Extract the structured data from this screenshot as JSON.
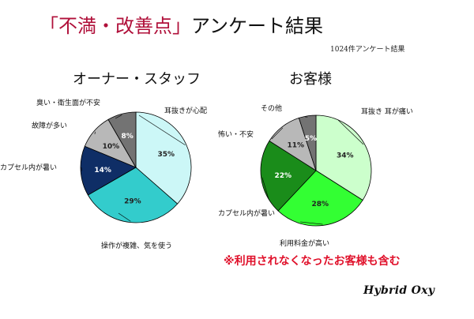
{
  "header": {
    "title_accent": "「不満・改善点」",
    "title_rest": "アンケート結果",
    "subnote": "1024件アンケート結果"
  },
  "note": "※利用されなくなったお客様も含む",
  "brand": "Hybrid Oxy",
  "colors": {
    "accent": "#b0103a",
    "note": "#e0102a"
  },
  "chart_data": [
    {
      "type": "pie",
      "title": "オーナー・スタッフ",
      "slices": [
        {
          "label": "耳抜きが心配",
          "value": 35,
          "value_label": "35%",
          "color": "#ccf7f7"
        },
        {
          "label": "操作が複雑、気を使う",
          "value": 29,
          "value_label": "29%",
          "color": "#33cccc"
        },
        {
          "label": "カプセル内が暑い",
          "value": 14,
          "value_label": "14%",
          "color": "#0f2e66"
        },
        {
          "label": "故障が多い",
          "value": 10,
          "value_label": "10%",
          "color": "#b8b8b8"
        },
        {
          "label": "臭い・衛生面が不安",
          "value": 8,
          "value_label": "8%",
          "color": "#737373"
        }
      ]
    },
    {
      "type": "pie",
      "title": "お客様",
      "slices": [
        {
          "label": "耳抜き 耳が痛い",
          "value": 34,
          "value_label": "34%",
          "color": "#ccffcc"
        },
        {
          "label": "利用料金が高い",
          "value": 28,
          "value_label": "28%",
          "color": "#33ff33"
        },
        {
          "label": "カプセル内が暑い",
          "value": 22,
          "value_label": "22%",
          "color": "#1a8c1a"
        },
        {
          "label": "怖い・不安",
          "value": 11,
          "value_label": "11%",
          "color": "#b8b8b8"
        },
        {
          "label": "その他",
          "value": 5,
          "value_label": "5%",
          "color": "#737373"
        }
      ]
    }
  ]
}
